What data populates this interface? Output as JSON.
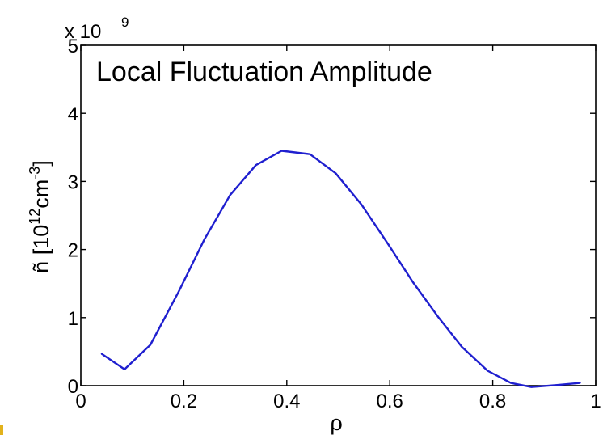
{
  "chart_data": {
    "type": "line",
    "title": "Local Fluctuation Amplitude",
    "xlabel": "ρ",
    "ylabel": {
      "prefix": "ñ  [10",
      "exp1": "12",
      "middle": "cm",
      "exp2": "-3",
      "suffix": "]"
    },
    "y_multiplier": {
      "base": "x 10",
      "exponent": "9"
    },
    "xlim": [
      0,
      1
    ],
    "ylim": [
      0,
      5
    ],
    "xticks": [
      0,
      0.2,
      0.4,
      0.6,
      0.8,
      1
    ],
    "xtick_labels": [
      "0",
      "0.2",
      "0.4",
      "0.6",
      "0.8",
      "1"
    ],
    "yticks": [
      0,
      1,
      2,
      3,
      4,
      5
    ],
    "ytick_labels": [
      "0",
      "1",
      "2",
      "3",
      "4",
      "5"
    ],
    "grid": false,
    "series": [
      {
        "color": "#1f1fcf",
        "x": [
          0.04,
          0.085,
          0.135,
          0.19,
          0.24,
          0.29,
          0.34,
          0.39,
          0.445,
          0.495,
          0.545,
          0.595,
          0.645,
          0.695,
          0.74,
          0.79,
          0.835,
          0.875,
          0.925,
          0.97
        ],
        "y": [
          0.47,
          0.24,
          0.6,
          1.38,
          2.15,
          2.8,
          3.24,
          3.45,
          3.4,
          3.12,
          2.66,
          2.1,
          1.52,
          1.0,
          0.57,
          0.22,
          0.04,
          -0.02,
          0.01,
          0.04
        ]
      }
    ]
  },
  "colors": {
    "series": "#1f1fcf",
    "axis": "#000000",
    "corner_mark": "#e2b21c"
  }
}
